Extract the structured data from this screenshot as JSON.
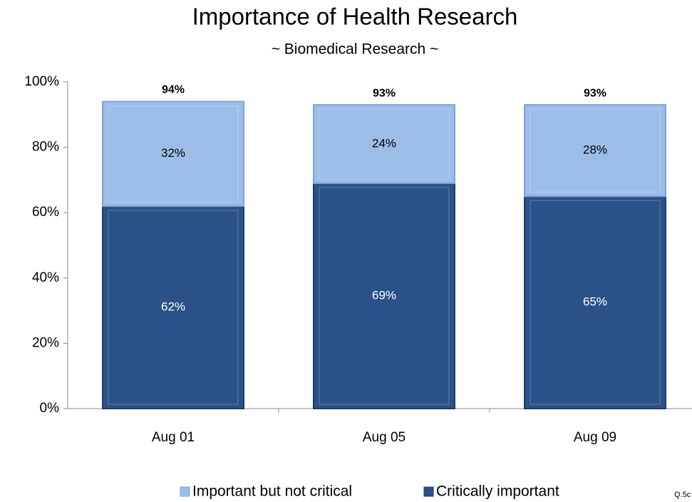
{
  "chart_data": {
    "type": "stacked_bar",
    "title": "Importance of Health Research",
    "subtitle": "~ Biomedical Research ~",
    "categories": [
      "Aug 01",
      "Aug 05",
      "Aug 09"
    ],
    "series": [
      {
        "name": "Important but not critical",
        "color": "#9dbde9",
        "values": [
          32,
          24,
          28
        ],
        "value_labels": [
          "32%",
          "24%",
          "28%"
        ]
      },
      {
        "name": "Critically important",
        "color": "#2a5289",
        "values": [
          62,
          69,
          65
        ],
        "value_labels": [
          "62%",
          "69%",
          "65%"
        ]
      }
    ],
    "totals": [
      94,
      93,
      93
    ],
    "total_labels": [
      "94%",
      "93%",
      "93%"
    ],
    "ylim": [
      0,
      100
    ],
    "yticks": [
      {
        "value": 0,
        "label": "0%"
      },
      {
        "value": 20,
        "label": "20%"
      },
      {
        "value": 40,
        "label": "40%"
      },
      {
        "value": 60,
        "label": "60%"
      },
      {
        "value": 80,
        "label": "80%"
      },
      {
        "value": 100,
        "label": "100%"
      }
    ],
    "footnote": "Q.5c"
  }
}
